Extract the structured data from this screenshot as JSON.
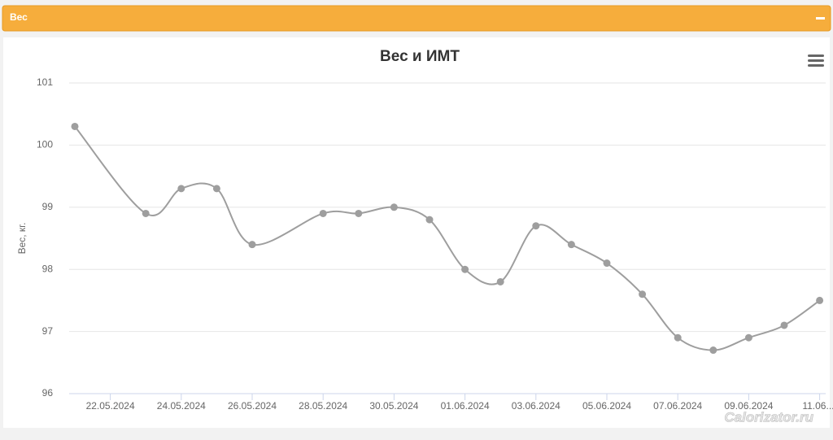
{
  "panel": {
    "title": "Вес"
  },
  "chart_data": {
    "type": "line",
    "title": "Вес и ИМТ",
    "y_label": "Вес, кг.",
    "x": [
      "21.05.2024",
      "23.05.2024",
      "24.05.2024",
      "25.05.2024",
      "26.05.2024",
      "28.05.2024",
      "29.05.2024",
      "30.05.2024",
      "31.05.2024",
      "01.06.2024",
      "02.06.2024",
      "03.06.2024",
      "04.06.2024",
      "05.06.2024",
      "06.06.2024",
      "07.06.2024",
      "08.06.2024",
      "09.06.2024",
      "10.06.2024",
      "11.06.2024"
    ],
    "series": [
      {
        "name": "Вес",
        "color": "#9e9e9e",
        "values": [
          100.3,
          98.9,
          99.3,
          99.3,
          98.4,
          98.9,
          98.9,
          99.0,
          98.8,
          98.0,
          97.8,
          98.7,
          98.4,
          98.1,
          97.6,
          96.9,
          96.7,
          96.9,
          97.1,
          97.5
        ]
      }
    ],
    "xticks": [
      "22.05.2024",
      "24.05.2024",
      "26.05.2024",
      "28.05.2024",
      "30.05.2024",
      "01.06.2024",
      "03.06.2024",
      "05.06.2024",
      "07.06.2024",
      "09.06.2024",
      {
        "value": "11.06.2024",
        "label": "11.06...."
      }
    ],
    "ylim": [
      96,
      101
    ],
    "yticks": [
      96,
      97,
      98,
      99,
      100,
      101
    ],
    "grid": true
  },
  "watermark": "Calorizator.ru"
}
